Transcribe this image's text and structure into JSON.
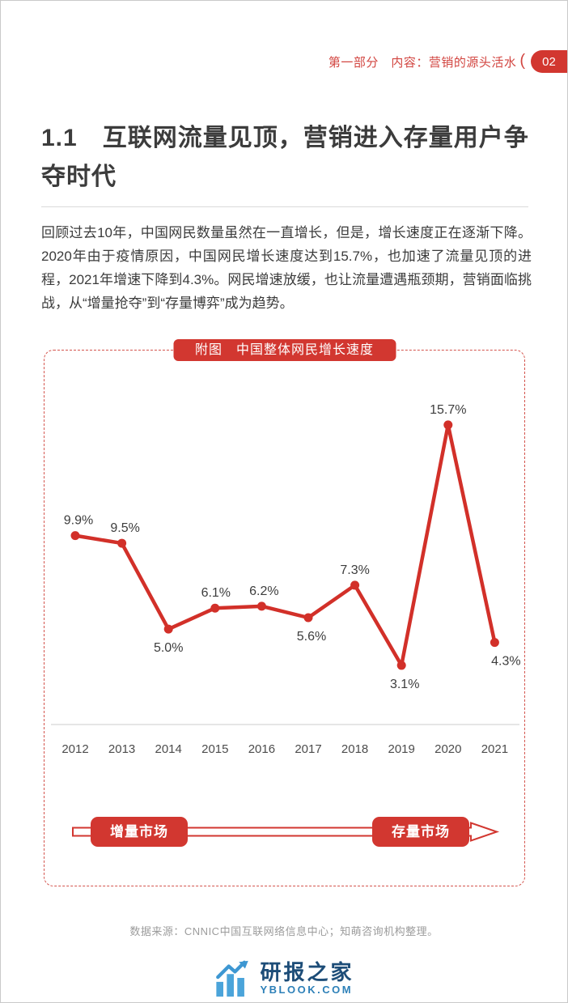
{
  "header": {
    "section_title": "第一部分　内容：营销的源头活水",
    "arc": "(",
    "page_number": "02"
  },
  "main": {
    "title": "1.1　互联网流量见顶，营销进入存量用户争夺时代",
    "paragraph": "回顾过去10年，中国网民数量虽然在一直增长，但是，增长速度正在逐渐下降。2020年由于疫情原因，中国网民增长速度达到15.7%，也加速了流量见顶的进程，2021年增速下降到4.3%。网民增速放缓，也让流量遭遇瓶颈期，营销面临挑战，从“增量抢夺”到“存量博弈”成为趋势。"
  },
  "chart": {
    "badge_label": "附图　中国整体网民增长速度"
  },
  "chart_data": {
    "type": "line",
    "title": "中国整体网民增长速度",
    "categories": [
      "2012",
      "2013",
      "2014",
      "2015",
      "2016",
      "2017",
      "2018",
      "2019",
      "2020",
      "2021"
    ],
    "values": [
      9.9,
      9.5,
      5.0,
      6.1,
      6.2,
      5.6,
      7.3,
      3.1,
      15.7,
      4.3
    ],
    "unit": "%",
    "ylim": [
      0,
      19.6
    ],
    "xlabel": "",
    "ylabel": "",
    "grid": false,
    "legend": false,
    "line_color": "#d23029",
    "label_color": "#3d3d3d",
    "axis_color": "#cccccc",
    "label_positions": [
      "above",
      "above",
      "below",
      "above",
      "above",
      "below",
      "above",
      "below",
      "above",
      "below"
    ],
    "label_dx": [
      4,
      4,
      0,
      1,
      3,
      4,
      0,
      4,
      0,
      14
    ],
    "annotations": [
      "增量市场",
      "存量市场"
    ]
  },
  "footer": {
    "source": "数据来源：CNNIC中国互联网络信息中心；知萌咨询机构整理。",
    "logo_name": "研报之家",
    "logo_domain": "YBLOOK.COM"
  }
}
